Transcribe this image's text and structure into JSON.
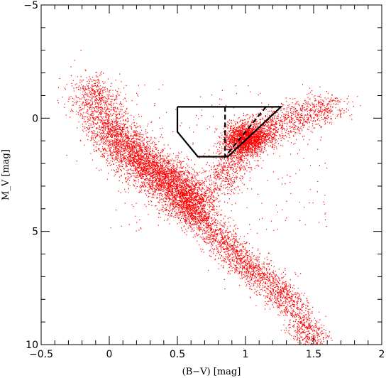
{
  "chart_data": {
    "type": "scatter",
    "xlabel": "(B−V) [mag]",
    "ylabel": "M_V [mag]",
    "xlim": [
      -0.5,
      2.0
    ],
    "ylim": [
      10,
      -5
    ],
    "x_ticks": [
      -0.5,
      0,
      0.5,
      1,
      1.5,
      2
    ],
    "x_tick_labels": [
      "−0.5",
      "0",
      "0.5",
      "1",
      "1.5",
      "2"
    ],
    "y_ticks": [
      -5,
      0,
      5,
      10
    ],
    "y_tick_labels": [
      "−5",
      "0",
      "5",
      "10"
    ],
    "point_color": "#ff0000",
    "line_color": "#000000",
    "density_ridges": {
      "main_sequence": [
        [
          -0.15,
          -1.5
        ],
        [
          0.0,
          0.5
        ],
        [
          0.15,
          1.5
        ],
        [
          0.3,
          2.2
        ],
        [
          0.45,
          2.8
        ],
        [
          0.55,
          3.4
        ],
        [
          0.65,
          4.2
        ],
        [
          0.75,
          5.0
        ],
        [
          0.85,
          5.6
        ],
        [
          0.95,
          6.2
        ],
        [
          1.05,
          6.7
        ],
        [
          1.15,
          7.1
        ],
        [
          1.25,
          7.7
        ],
        [
          1.35,
          8.4
        ],
        [
          1.45,
          9.3
        ],
        [
          1.5,
          9.9
        ]
      ],
      "red_clump": [
        1.0,
        0.9
      ],
      "giant_branch": [
        [
          0.8,
          3.0
        ],
        [
          0.9,
          2.0
        ],
        [
          1.0,
          1.1
        ],
        [
          1.1,
          0.6
        ],
        [
          1.25,
          0.2
        ],
        [
          1.45,
          -0.2
        ],
        [
          1.65,
          -0.6
        ]
      ]
    },
    "selection_box_solid": [
      [
        0.5,
        -0.5
      ],
      [
        0.5,
        0.6
      ],
      [
        0.65,
        1.7
      ],
      [
        0.87,
        1.7
      ],
      [
        1.26,
        -0.5
      ],
      [
        0.5,
        -0.5
      ]
    ],
    "selection_box_dashed": [
      [
        0.85,
        -0.5
      ],
      [
        0.85,
        1.7
      ],
      [
        1.15,
        -0.5
      ]
    ]
  }
}
